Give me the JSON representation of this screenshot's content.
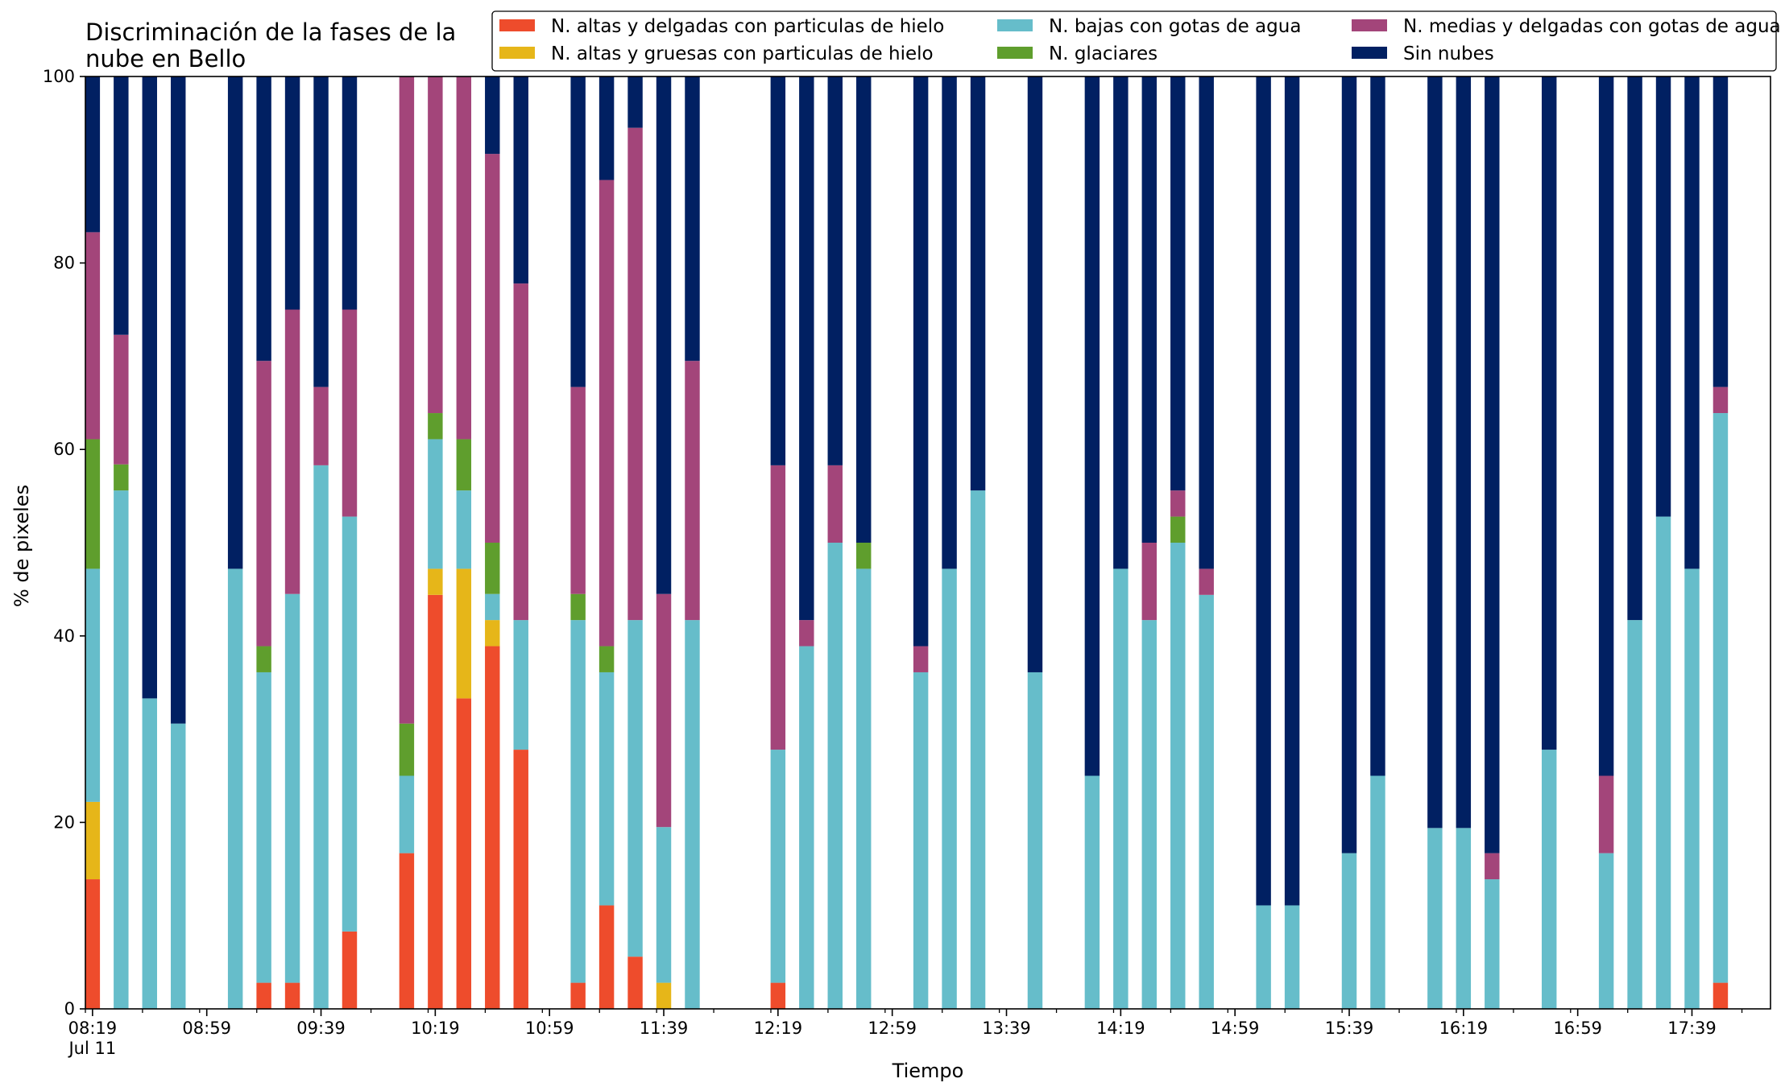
{
  "chart_data": {
    "type": "bar",
    "stacked": true,
    "title_lines": [
      "Discriminación de la fases de la",
      "nube en Bello"
    ],
    "xlabel": "Tiempo",
    "ylabel": "% de pixeles",
    "ylim": [
      0,
      100
    ],
    "yticks": [
      0,
      20,
      40,
      60,
      80,
      100
    ],
    "grid": false,
    "legend_position": "top-right",
    "x_start": "08:19",
    "x_step_minutes": 5,
    "x_end_index": 118,
    "xtick_labels": [
      "08:19",
      "08:59",
      "09:39",
      "10:19",
      "10:59",
      "11:39",
      "12:19",
      "12:59",
      "13:39",
      "14:19",
      "14:59",
      "15:39",
      "16:19",
      "16:59",
      "17:39"
    ],
    "xtick_date": "Jul 11",
    "series": [
      {
        "name": "N. altas y delgadas con particulas de hielo",
        "color": "#ee4c2c"
      },
      {
        "name": "N. altas y gruesas con particulas de hielo",
        "color": "#e6b619"
      },
      {
        "name": "N. bajas con gotas de agua",
        "color": "#66bdca"
      },
      {
        "name": "N. glaciares",
        "color": "#5f9e2d"
      },
      {
        "name": "N. medias y delgadas con gotas de agua",
        "color": "#a3457a"
      },
      {
        "name": "Sin nubes",
        "color": "#012062"
      }
    ],
    "bars": [
      {
        "time": "08:19",
        "values": [
          13.9,
          8.3,
          25.0,
          13.9,
          22.2,
          16.7
        ]
      },
      {
        "time": "08:29",
        "values": [
          0,
          0,
          55.6,
          2.8,
          13.9,
          27.7
        ]
      },
      {
        "time": "08:39",
        "values": [
          0,
          0,
          33.3,
          0,
          0,
          66.7
        ]
      },
      {
        "time": "08:49",
        "values": [
          0,
          0,
          30.6,
          0,
          0,
          69.4
        ]
      },
      {
        "time": "09:09",
        "values": [
          0,
          0,
          47.2,
          0,
          0,
          52.8
        ]
      },
      {
        "time": "09:19",
        "values": [
          2.8,
          0,
          33.3,
          2.8,
          30.6,
          30.5
        ]
      },
      {
        "time": "09:29",
        "values": [
          2.8,
          0,
          41.7,
          0,
          30.5,
          25.0
        ]
      },
      {
        "time": "09:39",
        "values": [
          0,
          0,
          58.3,
          0,
          8.4,
          33.3
        ]
      },
      {
        "time": "09:49",
        "values": [
          8.3,
          0,
          44.5,
          0,
          22.2,
          25.0
        ]
      },
      {
        "time": "10:09",
        "values": [
          16.7,
          0,
          8.3,
          5.6,
          69.4,
          0
        ]
      },
      {
        "time": "10:19",
        "values": [
          44.4,
          2.8,
          13.9,
          2.8,
          36.1,
          0
        ]
      },
      {
        "time": "10:29",
        "values": [
          33.3,
          13.9,
          8.4,
          5.5,
          38.9,
          0
        ]
      },
      {
        "time": "10:39",
        "values": [
          38.9,
          2.8,
          2.8,
          5.5,
          41.7,
          8.3
        ]
      },
      {
        "time": "10:49",
        "values": [
          27.8,
          0,
          13.9,
          0,
          36.1,
          22.2
        ]
      },
      {
        "time": "11:09",
        "values": [
          2.8,
          0,
          38.9,
          2.8,
          22.2,
          33.3
        ]
      },
      {
        "time": "11:19",
        "values": [
          11.1,
          0,
          25.0,
          2.8,
          50.0,
          11.1
        ]
      },
      {
        "time": "11:29",
        "values": [
          5.6,
          0,
          36.1,
          0,
          52.8,
          5.5
        ]
      },
      {
        "time": "11:39",
        "values": [
          0,
          2.8,
          16.7,
          0,
          25.0,
          55.5
        ]
      },
      {
        "time": "11:49",
        "values": [
          0,
          0,
          41.7,
          0,
          27.8,
          30.5
        ]
      },
      {
        "time": "12:19",
        "values": [
          2.8,
          0,
          25.0,
          0,
          30.5,
          41.7
        ]
      },
      {
        "time": "12:29",
        "values": [
          0,
          0,
          38.9,
          0,
          2.8,
          58.3
        ]
      },
      {
        "time": "12:39",
        "values": [
          0,
          0,
          50.0,
          0,
          8.3,
          41.7
        ]
      },
      {
        "time": "12:49",
        "values": [
          0,
          0,
          47.2,
          2.8,
          0,
          50.0
        ]
      },
      {
        "time": "13:09",
        "values": [
          0,
          0,
          36.1,
          0,
          2.8,
          61.1
        ]
      },
      {
        "time": "13:19",
        "values": [
          0,
          0,
          47.2,
          0,
          0,
          52.8
        ]
      },
      {
        "time": "13:29",
        "values": [
          0,
          0,
          55.6,
          0,
          0,
          44.4
        ]
      },
      {
        "time": "13:49",
        "values": [
          0,
          0,
          36.1,
          0,
          0,
          63.9
        ]
      },
      {
        "time": "14:09",
        "values": [
          0,
          0,
          25.0,
          0,
          0,
          75.0
        ]
      },
      {
        "time": "14:19",
        "values": [
          0,
          0,
          47.2,
          0,
          0,
          52.8
        ]
      },
      {
        "time": "14:29",
        "values": [
          0,
          0,
          41.7,
          0,
          8.3,
          50.0
        ]
      },
      {
        "time": "14:39",
        "values": [
          0,
          0,
          50.0,
          2.8,
          2.8,
          44.4
        ]
      },
      {
        "time": "14:49",
        "values": [
          0,
          0,
          44.4,
          0,
          2.8,
          52.8
        ]
      },
      {
        "time": "15:09",
        "values": [
          0,
          0,
          11.1,
          0,
          0,
          88.9
        ]
      },
      {
        "time": "15:19",
        "values": [
          0,
          0,
          11.1,
          0,
          0,
          88.9
        ]
      },
      {
        "time": "15:39",
        "values": [
          0,
          0,
          16.7,
          0,
          0,
          83.3
        ]
      },
      {
        "time": "15:49",
        "values": [
          0,
          0,
          25.0,
          0,
          0,
          75.0
        ]
      },
      {
        "time": "16:09",
        "values": [
          0,
          0,
          19.4,
          0,
          0,
          80.6
        ]
      },
      {
        "time": "16:19",
        "values": [
          0,
          0,
          19.4,
          0,
          0,
          80.6
        ]
      },
      {
        "time": "16:29",
        "values": [
          0,
          0,
          13.9,
          0,
          2.8,
          83.3
        ]
      },
      {
        "time": "16:49",
        "values": [
          0,
          0,
          27.8,
          0,
          0,
          72.2
        ]
      },
      {
        "time": "17:09",
        "values": [
          0,
          0,
          16.7,
          0,
          8.3,
          75.0
        ]
      },
      {
        "time": "17:19",
        "values": [
          0,
          0,
          41.7,
          0,
          0,
          58.3
        ]
      },
      {
        "time": "17:29",
        "values": [
          0,
          0,
          52.8,
          0,
          0,
          47.2
        ]
      },
      {
        "time": "17:39",
        "values": [
          0,
          0,
          47.2,
          0,
          0,
          52.8
        ]
      },
      {
        "time": "17:49",
        "values": [
          2.8,
          0,
          61.1,
          0,
          2.8,
          33.3
        ]
      }
    ]
  }
}
